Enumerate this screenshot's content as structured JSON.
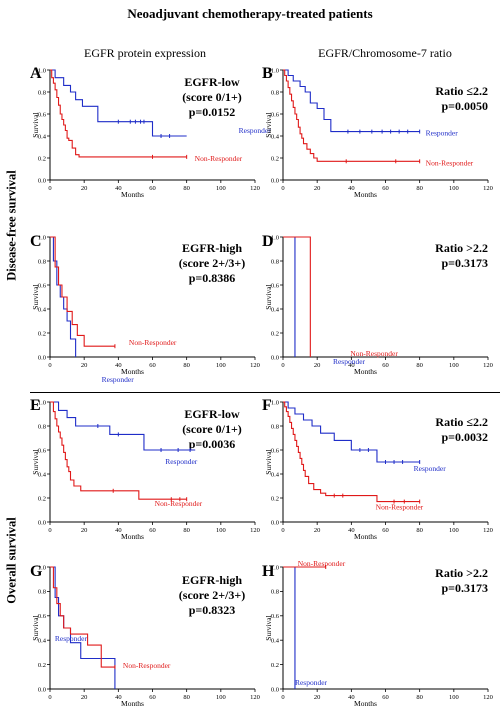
{
  "figure": {
    "title": "Neoadjuvant chemotherapy-treated patients",
    "column_headers": [
      "EGFR protein expression",
      "EGFR/Chromosome-7 ratio"
    ],
    "row_headers": [
      "Disease-free survival",
      "Overall survival"
    ]
  },
  "colors": {
    "responder": "#1f2dc8",
    "non_responder": "#e01919",
    "axis": "#000000"
  },
  "chart_data": [
    {
      "panel": "A",
      "type": "line",
      "step": "post",
      "annotation": [
        "EGFR-low",
        "(score 0/1+)",
        "p=0.0152"
      ],
      "xlabel": "Months",
      "ylabel": "Survival",
      "xlim": [
        0,
        120
      ],
      "ylim": [
        0,
        1.0
      ],
      "xticks": [
        0,
        20,
        40,
        60,
        80,
        100,
        120
      ],
      "yticks": [
        0,
        0.2,
        0.4,
        0.6,
        0.8,
        1.0
      ],
      "series": [
        {
          "name": "Responder",
          "color": "#1f2dc8",
          "x": [
            0,
            3,
            5,
            8,
            12,
            15,
            19,
            28,
            60,
            80
          ],
          "y": [
            1.0,
            0.93,
            0.93,
            0.86,
            0.8,
            0.73,
            0.67,
            0.53,
            0.4,
            0.4
          ],
          "censored": [
            [
              40,
              0.53
            ],
            [
              47,
              0.53
            ],
            [
              50,
              0.53
            ],
            [
              53,
              0.53
            ],
            [
              55,
              0.53
            ],
            [
              65,
              0.4
            ],
            [
              70,
              0.4
            ]
          ]
        },
        {
          "name": "Non-Responder",
          "color": "#e01919",
          "x": [
            0,
            1,
            2,
            3,
            4,
            5,
            6,
            7,
            8,
            9,
            10,
            11,
            13,
            15,
            17,
            80
          ],
          "y": [
            1.0,
            0.93,
            0.88,
            0.82,
            0.75,
            0.68,
            0.6,
            0.55,
            0.5,
            0.45,
            0.38,
            0.36,
            0.29,
            0.23,
            0.21,
            0.21
          ],
          "censored": [
            [
              60,
              0.21
            ],
            [
              80,
              0.21
            ]
          ]
        }
      ]
    },
    {
      "panel": "B",
      "type": "line",
      "step": "post",
      "annotation": [
        "Ratio ≤2.2",
        "p=0.0050"
      ],
      "xlabel": "Months",
      "ylabel": "Survival",
      "xlim": [
        0,
        120
      ],
      "ylim": [
        0,
        1.0
      ],
      "xticks": [
        0,
        20,
        40,
        60,
        80,
        100,
        120
      ],
      "yticks": [
        0,
        0.2,
        0.4,
        0.6,
        0.8,
        1.0
      ],
      "series": [
        {
          "name": "Responder",
          "color": "#1f2dc8",
          "x": [
            0,
            3,
            6,
            10,
            13,
            16,
            20,
            24,
            28,
            80
          ],
          "y": [
            1.0,
            0.95,
            0.9,
            0.85,
            0.8,
            0.7,
            0.65,
            0.55,
            0.44,
            0.44
          ],
          "censored": [
            [
              38,
              0.44
            ],
            [
              45,
              0.44
            ],
            [
              52,
              0.44
            ],
            [
              58,
              0.44
            ],
            [
              63,
              0.44
            ],
            [
              68,
              0.44
            ],
            [
              73,
              0.44
            ],
            [
              80,
              0.44
            ]
          ]
        },
        {
          "name": "Non-Responder",
          "color": "#e01919",
          "x": [
            0,
            1,
            2,
            3,
            4,
            5,
            6,
            7,
            8,
            9,
            10,
            11,
            12,
            14,
            16,
            18,
            20,
            80
          ],
          "y": [
            1.0,
            0.95,
            0.9,
            0.84,
            0.78,
            0.72,
            0.66,
            0.6,
            0.55,
            0.48,
            0.42,
            0.38,
            0.33,
            0.28,
            0.24,
            0.2,
            0.17,
            0.17
          ],
          "censored": [
            [
              37,
              0.17
            ],
            [
              66,
              0.17
            ],
            [
              80,
              0.17
            ]
          ]
        }
      ]
    },
    {
      "panel": "C",
      "type": "line",
      "step": "post",
      "annotation": [
        "EGFR-high",
        "(score 2+/3+)",
        "p=0.8386"
      ],
      "xlabel": "Months",
      "ylabel": "Survival",
      "xlim": [
        0,
        120
      ],
      "ylim": [
        0,
        1.0
      ],
      "xticks": [
        0,
        20,
        40,
        60,
        80,
        100,
        120
      ],
      "yticks": [
        0,
        0.2,
        0.4,
        0.6,
        0.8,
        1.0
      ],
      "series": [
        {
          "name": "Responder",
          "color": "#1f2dc8",
          "x": [
            0,
            2,
            4,
            6,
            8,
            10,
            12,
            15
          ],
          "y": [
            1.0,
            0.8,
            0.6,
            0.5,
            0.4,
            0.3,
            0.15,
            0.0
          ],
          "censored": []
        },
        {
          "name": "Non-Responder",
          "color": "#e01919",
          "x": [
            0,
            3,
            5,
            7,
            10,
            13,
            16,
            20,
            38
          ],
          "y": [
            1.0,
            0.75,
            0.6,
            0.5,
            0.38,
            0.27,
            0.18,
            0.09,
            0.09
          ],
          "censored": [
            [
              38,
              0.09
            ]
          ]
        }
      ]
    },
    {
      "panel": "D",
      "type": "line",
      "step": "post",
      "annotation": [
        "Ratio >2.2",
        "p=0.3173"
      ],
      "xlabel": "Months",
      "ylabel": "Survival",
      "xlim": [
        0,
        120
      ],
      "ylim": [
        0,
        1.0
      ],
      "xticks": [
        0,
        20,
        40,
        60,
        80,
        100,
        120
      ],
      "yticks": [
        0,
        0.2,
        0.4,
        0.6,
        0.8,
        1.0
      ],
      "series": [
        {
          "name": "Responder",
          "color": "#1f2dc8",
          "x": [
            0,
            7
          ],
          "y": [
            1.0,
            0.0
          ],
          "censored": []
        },
        {
          "name": "Non-Responder",
          "color": "#e01919",
          "x": [
            0,
            16
          ],
          "y": [
            1.0,
            0.0
          ],
          "censored": []
        }
      ]
    },
    {
      "panel": "E",
      "type": "line",
      "step": "post",
      "annotation": [
        "EGFR-low",
        "(score 0/1+)",
        "p=0.0036"
      ],
      "xlabel": "Months",
      "ylabel": "Survival",
      "xlim": [
        0,
        120
      ],
      "ylim": [
        0,
        1.0
      ],
      "xticks": [
        0,
        20,
        40,
        60,
        80,
        100,
        120
      ],
      "yticks": [
        0,
        0.2,
        0.4,
        0.6,
        0.8,
        1.0
      ],
      "series": [
        {
          "name": "Responder",
          "color": "#1f2dc8",
          "x": [
            0,
            5,
            10,
            15,
            25,
            35,
            55,
            85
          ],
          "y": [
            1.0,
            0.93,
            0.87,
            0.8,
            0.8,
            0.73,
            0.6,
            0.6
          ],
          "censored": [
            [
              28,
              0.8
            ],
            [
              40,
              0.73
            ],
            [
              65,
              0.6
            ],
            [
              75,
              0.6
            ],
            [
              82,
              0.6
            ]
          ]
        },
        {
          "name": "Non-Responder",
          "color": "#e01919",
          "x": [
            0,
            2,
            3,
            4,
            5,
            6,
            7,
            8,
            9,
            10,
            11,
            12,
            14,
            18,
            52,
            80
          ],
          "y": [
            1.0,
            0.92,
            0.86,
            0.8,
            0.75,
            0.7,
            0.64,
            0.58,
            0.52,
            0.46,
            0.42,
            0.35,
            0.3,
            0.26,
            0.19,
            0.19
          ],
          "censored": [
            [
              37,
              0.26
            ],
            [
              71,
              0.19
            ],
            [
              76,
              0.19
            ],
            [
              80,
              0.19
            ]
          ]
        }
      ]
    },
    {
      "panel": "F",
      "type": "line",
      "step": "post",
      "annotation": [
        "Ratio ≤2.2",
        "p=0.0032"
      ],
      "xlabel": "Months",
      "ylabel": "Survival",
      "xlim": [
        0,
        120
      ],
      "ylim": [
        0,
        1.0
      ],
      "xticks": [
        0,
        20,
        40,
        60,
        80,
        100,
        120
      ],
      "yticks": [
        0,
        0.2,
        0.4,
        0.6,
        0.8,
        1.0
      ],
      "series": [
        {
          "name": "Responder",
          "color": "#1f2dc8",
          "x": [
            0,
            3,
            7,
            12,
            17,
            22,
            30,
            40,
            55,
            80
          ],
          "y": [
            1.0,
            0.95,
            0.9,
            0.85,
            0.8,
            0.74,
            0.68,
            0.6,
            0.5,
            0.5
          ],
          "censored": [
            [
              45,
              0.6
            ],
            [
              50,
              0.6
            ],
            [
              60,
              0.5
            ],
            [
              65,
              0.5
            ],
            [
              70,
              0.5
            ],
            [
              80,
              0.5
            ]
          ]
        },
        {
          "name": "Non-Responder",
          "color": "#e01919",
          "x": [
            0,
            1,
            2,
            3,
            4,
            5,
            6,
            7,
            8,
            9,
            10,
            11,
            12,
            13,
            15,
            18,
            22,
            25,
            55,
            80
          ],
          "y": [
            1.0,
            0.96,
            0.92,
            0.88,
            0.83,
            0.78,
            0.73,
            0.68,
            0.63,
            0.58,
            0.53,
            0.48,
            0.43,
            0.38,
            0.32,
            0.27,
            0.24,
            0.22,
            0.17,
            0.17
          ],
          "censored": [
            [
              30,
              0.22
            ],
            [
              35,
              0.22
            ],
            [
              65,
              0.17
            ],
            [
              71,
              0.17
            ],
            [
              80,
              0.17
            ]
          ]
        }
      ]
    },
    {
      "panel": "G",
      "type": "line",
      "step": "post",
      "annotation": [
        "EGFR-high",
        "(score 2+/3+)",
        "p=0.8323"
      ],
      "xlabel": "Months",
      "ylabel": "Survival",
      "xlim": [
        0,
        120
      ],
      "ylim": [
        0,
        1.0
      ],
      "xticks": [
        0,
        20,
        40,
        60,
        80,
        100,
        120
      ],
      "yticks": [
        0,
        0.2,
        0.4,
        0.6,
        0.8,
        1.0
      ],
      "series": [
        {
          "name": "Responder",
          "color": "#1f2dc8",
          "x": [
            0,
            3,
            5,
            8,
            12,
            18,
            38
          ],
          "y": [
            1.0,
            0.75,
            0.6,
            0.5,
            0.38,
            0.25,
            0.0
          ],
          "censored": []
        },
        {
          "name": "Non-Responder",
          "color": "#e01919",
          "x": [
            0,
            2,
            4,
            6,
            8,
            12,
            17,
            22,
            30,
            38
          ],
          "y": [
            1.0,
            0.83,
            0.7,
            0.6,
            0.5,
            0.45,
            0.45,
            0.36,
            0.18,
            0.18
          ],
          "censored": [
            [
              38,
              0.18
            ]
          ]
        }
      ]
    },
    {
      "panel": "H",
      "type": "line",
      "step": "post",
      "annotation": [
        "Ratio >2.2",
        "p=0.3173"
      ],
      "xlabel": "Months",
      "ylabel": "Survival",
      "xlim": [
        0,
        120
      ],
      "ylim": [
        0,
        1.0
      ],
      "xticks": [
        0,
        20,
        40,
        60,
        80,
        100,
        120
      ],
      "yticks": [
        0,
        0.2,
        0.4,
        0.6,
        0.8,
        1.0
      ],
      "series": [
        {
          "name": "Responder",
          "color": "#1f2dc8",
          "x": [
            0,
            7
          ],
          "y": [
            1.0,
            0.0
          ],
          "censored": []
        },
        {
          "name": "Non-Responder",
          "color": "#e01919",
          "x": [
            0,
            25
          ],
          "y": [
            1.0,
            1.0
          ],
          "censored": [
            [
              25,
              1.0
            ]
          ]
        }
      ]
    }
  ]
}
